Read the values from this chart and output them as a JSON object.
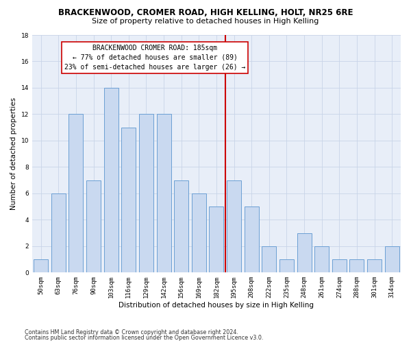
{
  "title": "BRACKENWOOD, CROMER ROAD, HIGH KELLING, HOLT, NR25 6RE",
  "subtitle": "Size of property relative to detached houses in High Kelling",
  "xlabel": "Distribution of detached houses by size in High Kelling",
  "ylabel": "Number of detached properties",
  "bar_labels": [
    "50sqm",
    "63sqm",
    "76sqm",
    "90sqm",
    "103sqm",
    "116sqm",
    "129sqm",
    "142sqm",
    "156sqm",
    "169sqm",
    "182sqm",
    "195sqm",
    "208sqm",
    "222sqm",
    "235sqm",
    "248sqm",
    "261sqm",
    "274sqm",
    "288sqm",
    "301sqm",
    "314sqm"
  ],
  "bar_values": [
    1,
    6,
    12,
    7,
    14,
    11,
    12,
    12,
    7,
    6,
    5,
    7,
    5,
    2,
    1,
    3,
    2,
    1,
    1,
    1,
    2
  ],
  "bar_color": "#c9d9f0",
  "bar_edge_color": "#6b9fd4",
  "bar_edge_width": 0.7,
  "vline_color": "#cc0000",
  "annotation_line1": "BRACKENWOOD CROMER ROAD: 185sqm",
  "annotation_line2": "← 77% of detached houses are smaller (89)",
  "annotation_line3": "23% of semi-detached houses are larger (26) →",
  "annotation_box_color": "#ffffff",
  "annotation_box_edge_color": "#cc0000",
  "ylim": [
    0,
    18
  ],
  "yticks": [
    0,
    2,
    4,
    6,
    8,
    10,
    12,
    14,
    16,
    18
  ],
  "grid_color": "#c8d4e8",
  "background_color": "#e8eef8",
  "footnote1": "Contains HM Land Registry data © Crown copyright and database right 2024.",
  "footnote2": "Contains public sector information licensed under the Open Government Licence v3.0.",
  "title_fontsize": 8.5,
  "subtitle_fontsize": 8,
  "axis_label_fontsize": 7.5,
  "tick_fontsize": 6.5,
  "annotation_fontsize": 7,
  "footnote_fontsize": 5.8
}
